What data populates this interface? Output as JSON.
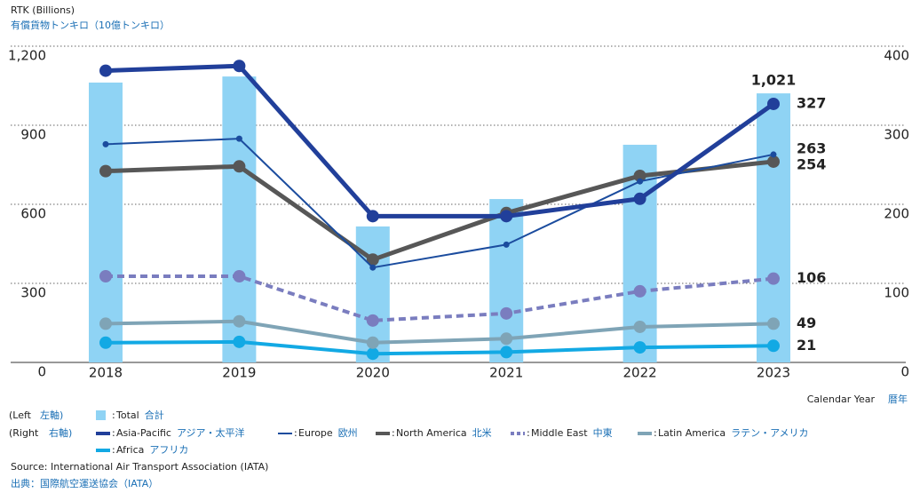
{
  "chart_data": {
    "type": "bar-line",
    "y_label": "RTK (Billions)",
    "y_label_ja": "有償貨物トンキロ（10億トンキロ）",
    "x_label": "Calendar Year",
    "x_label_ja": "暦年",
    "categories": [
      "2018",
      "2019",
      "2020",
      "2021",
      "2022",
      "2023"
    ],
    "ylim": [
      0,
      1200
    ],
    "yticks": [
      0,
      300,
      600,
      900,
      {
        "value": 1200,
        "label": "1,200"
      }
    ],
    "y2lim": [
      0,
      400
    ],
    "y2ticks": [
      0,
      100,
      200,
      300,
      400
    ],
    "grid": true,
    "legend_separator": ":",
    "legend_left": [
      "(Left",
      "左軸)"
    ],
    "legend_right": [
      "(Right",
      "右軸)"
    ],
    "series": [
      {
        "name": "Total",
        "name_ja": "合計",
        "type": "bar",
        "axis": "y",
        "color": "#8fd3f4",
        "values": [
          1062,
          1085,
          516,
          620,
          826,
          1021
        ],
        "value_labels": [
          null,
          null,
          null,
          null,
          null,
          "1,021"
        ]
      },
      {
        "name": "Asia-Pacific",
        "name_ja": "アジア・太平洋",
        "type": "line",
        "axis": "y2",
        "color": "#213f9a",
        "weight": "bold",
        "line_style": "solid",
        "values": [
          369,
          375,
          185,
          185,
          207,
          327
        ],
        "value_labels": [
          null,
          null,
          null,
          null,
          null,
          "327"
        ]
      },
      {
        "name": "Europe",
        "name_ja": "欧州",
        "type": "line",
        "axis": "y2",
        "color": "#1b4c9e",
        "weight": "thin",
        "line_style": "solid",
        "values": [
          276,
          283,
          120,
          149,
          229,
          263
        ],
        "value_labels": [
          null,
          null,
          null,
          null,
          null,
          "263"
        ]
      },
      {
        "name": "North America",
        "name_ja": "北米",
        "type": "line",
        "axis": "y2",
        "color": "#575757",
        "weight": "bold",
        "line_style": "solid",
        "values": [
          242,
          248,
          130,
          189,
          236,
          254
        ],
        "value_labels": [
          null,
          null,
          null,
          null,
          null,
          "254"
        ]
      },
      {
        "name": "Middle East",
        "name_ja": "中東",
        "type": "line",
        "axis": "y2",
        "color": "#7a7dbf",
        "weight": "medium",
        "line_style": "dashed",
        "values": [
          109,
          109,
          53,
          62,
          90,
          106
        ],
        "value_labels": [
          null,
          null,
          null,
          null,
          null,
          "106"
        ]
      },
      {
        "name": "Latin America",
        "name_ja": "ラテン・アメリカ",
        "type": "line",
        "axis": "y2",
        "color": "#7fa4b6",
        "weight": "medium",
        "line_style": "solid",
        "values": [
          49,
          52,
          25,
          30,
          45,
          49
        ],
        "value_labels": [
          null,
          null,
          null,
          null,
          null,
          "49"
        ]
      },
      {
        "name": "Africa",
        "name_ja": "アフリカ",
        "type": "line",
        "axis": "y2",
        "color": "#12a9e4",
        "weight": "medium",
        "line_style": "solid",
        "values": [
          25,
          26,
          11,
          13,
          19,
          21
        ],
        "value_labels": [
          null,
          null,
          null,
          null,
          null,
          "21"
        ]
      }
    ],
    "source": "Source: International Air Transport Association (IATA)",
    "source_ja": "出典：国際航空運送協会（IATA）"
  }
}
